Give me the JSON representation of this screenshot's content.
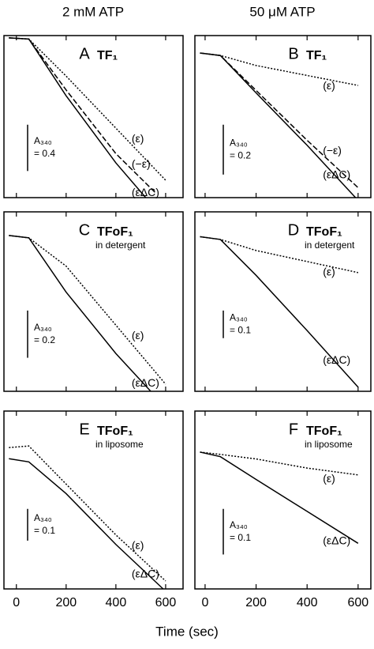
{
  "figure": {
    "column_titles": [
      "2 mM ATP",
      "50 μM ATP"
    ],
    "xlabel": "Time (sec)"
  },
  "chart_data": [
    {
      "type": "line",
      "panel": "A",
      "title": "TF₁",
      "xlim": [
        -50,
        670
      ],
      "ylim": [
        0,
        1.4
      ],
      "xticks": [
        0,
        200,
        400,
        600
      ],
      "show_xticklabels": false,
      "scale_bar": {
        "title": "A₃₄₀",
        "value": 0.4,
        "label": "= 0.4"
      },
      "series": [
        {
          "name": "(−ε)",
          "color": "#000000",
          "dash": "dashed",
          "x": [
            -30,
            50,
            200,
            400,
            560
          ],
          "values": [
            1.38,
            1.37,
            0.93,
            0.38,
            0.04
          ]
        },
        {
          "name": "(ε)",
          "color": "#000000",
          "dash": "dotted",
          "x": [
            -30,
            50,
            200,
            400,
            600
          ],
          "values": [
            1.38,
            1.37,
            1.05,
            0.6,
            0.15
          ]
        },
        {
          "name": "(εΔC)",
          "color": "#000000",
          "dash": "solid",
          "x": [
            -30,
            50,
            200,
            400,
            520
          ],
          "values": [
            1.38,
            1.37,
            0.88,
            0.3,
            0.0
          ]
        }
      ]
    },
    {
      "type": "line",
      "panel": "B",
      "title": "TF₁",
      "xlim": [
        -40,
        650
      ],
      "ylim": [
        0,
        0.65
      ],
      "xticks": [
        0,
        200,
        400,
        600
      ],
      "show_xticklabels": false,
      "scale_bar": {
        "title": "A₃₄₀",
        "value": 0.2,
        "label": "= 0.2"
      },
      "series": [
        {
          "name": "(ε)",
          "color": "#000000",
          "dash": "dotted",
          "x": [
            -20,
            60,
            200,
            400,
            600
          ],
          "values": [
            0.58,
            0.57,
            0.53,
            0.49,
            0.45
          ]
        },
        {
          "name": "(−ε)",
          "color": "#000000",
          "dash": "dashed",
          "x": [
            -20,
            60,
            200,
            400,
            600
          ],
          "values": [
            0.58,
            0.57,
            0.43,
            0.23,
            0.04
          ]
        },
        {
          "name": "(εΔC)",
          "color": "#000000",
          "dash": "solid",
          "x": [
            -20,
            60,
            200,
            400,
            590
          ],
          "values": [
            0.58,
            0.57,
            0.42,
            0.21,
            0.0
          ]
        }
      ]
    },
    {
      "type": "line",
      "panel": "C",
      "title": "TFoF₁",
      "subtitle": "in detergent",
      "xlim": [
        -50,
        670
      ],
      "ylim": [
        0,
        0.76
      ],
      "xticks": [
        0,
        200,
        400,
        600
      ],
      "show_xticklabels": false,
      "scale_bar": {
        "title": "A₃₄₀",
        "value": 0.2,
        "label": "= 0.2"
      },
      "series": [
        {
          "name": "(ε)",
          "color": "#000000",
          "dash": "dotted",
          "x": [
            -30,
            50,
            200,
            400,
            600
          ],
          "values": [
            0.66,
            0.65,
            0.53,
            0.28,
            0.03
          ]
        },
        {
          "name": "(εΔC)",
          "color": "#000000",
          "dash": "solid",
          "x": [
            -30,
            50,
            200,
            400,
            540
          ],
          "values": [
            0.66,
            0.65,
            0.42,
            0.16,
            0.0
          ]
        }
      ]
    },
    {
      "type": "line",
      "panel": "D",
      "title": "TFoF₁",
      "subtitle": "in detergent",
      "xlim": [
        -40,
        650
      ],
      "ylim": [
        0,
        0.65
      ],
      "xticks": [
        0,
        200,
        400,
        600
      ],
      "show_xticklabels": false,
      "scale_bar": {
        "title": "A₃₄₀",
        "value": 0.1,
        "label": "= 0.1"
      },
      "series": [
        {
          "name": "(ε)",
          "color": "#000000",
          "dash": "dotted",
          "x": [
            -20,
            60,
            200,
            400,
            600
          ],
          "values": [
            0.56,
            0.55,
            0.51,
            0.47,
            0.43
          ]
        },
        {
          "name": "(εΔC)",
          "color": "#000000",
          "dash": "solid",
          "x": [
            -20,
            60,
            200,
            400,
            600
          ],
          "values": [
            0.56,
            0.55,
            0.42,
            0.22,
            0.015
          ]
        }
      ]
    },
    {
      "type": "line",
      "panel": "E",
      "title": "TFoF₁",
      "subtitle": "in liposome",
      "xlim": [
        -50,
        670
      ],
      "ylim": [
        0,
        0.56
      ],
      "xticks": [
        0,
        200,
        400,
        600
      ],
      "show_xticklabels": true,
      "scale_bar": {
        "title": "A₃₄₀",
        "value": 0.1,
        "label": "= 0.1"
      },
      "series": [
        {
          "name": "(ε)",
          "color": "#000000",
          "dash": "dotted",
          "x": [
            -30,
            50,
            200,
            400,
            600
          ],
          "values": [
            0.445,
            0.45,
            0.33,
            0.17,
            0.025
          ]
        },
        {
          "name": "(εΔC)",
          "color": "#000000",
          "dash": "solid",
          "x": [
            -30,
            50,
            200,
            400,
            590
          ],
          "values": [
            0.41,
            0.4,
            0.3,
            0.14,
            0.0
          ]
        }
      ]
    },
    {
      "type": "line",
      "panel": "F",
      "title": "TFoF₁",
      "subtitle": "in liposome",
      "xlim": [
        -40,
        650
      ],
      "ylim": [
        0,
        0.39
      ],
      "xticks": [
        0,
        200,
        400,
        600
      ],
      "show_xticklabels": true,
      "scale_bar": {
        "title": "A₃₄₀",
        "value": 0.1,
        "label": "= 0.1"
      },
      "series": [
        {
          "name": "(ε)",
          "color": "#000000",
          "dash": "dotted",
          "x": [
            -20,
            60,
            200,
            400,
            600
          ],
          "values": [
            0.3,
            0.295,
            0.285,
            0.265,
            0.25
          ]
        },
        {
          "name": "(εΔC)",
          "color": "#000000",
          "dash": "solid",
          "x": [
            -20,
            60,
            200,
            400,
            600
          ],
          "values": [
            0.3,
            0.29,
            0.24,
            0.17,
            0.1
          ]
        }
      ]
    }
  ]
}
